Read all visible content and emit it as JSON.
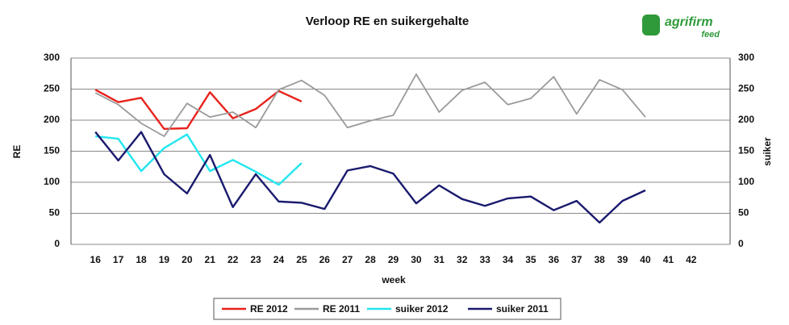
{
  "chart_data": {
    "type": "line",
    "title": "Verloop RE en suikergehalte",
    "logo": {
      "name": "agrifirm",
      "sub": "feed"
    },
    "xlabel": "week",
    "ylabel": "RE",
    "y2label": "suiker",
    "categories": [
      "16",
      "17",
      "18",
      "19",
      "20",
      "21",
      "22",
      "23",
      "24",
      "25",
      "26",
      "27",
      "28",
      "29",
      "30",
      "31",
      "32",
      "33",
      "34",
      "35",
      "36",
      "37",
      "38",
      "39",
      "40",
      "41",
      "42"
    ],
    "ylim": [
      0,
      300
    ],
    "yticks": [
      0,
      50,
      100,
      150,
      200,
      250,
      300
    ],
    "y2lim": [
      0,
      300
    ],
    "y2ticks": [
      0,
      50,
      100,
      150,
      200,
      250,
      300
    ],
    "grid": true,
    "legend": "bottom",
    "series": [
      {
        "name": "RE 2012",
        "color": "#e8221c",
        "values": [
          249,
          229,
          236,
          186,
          187,
          245,
          203,
          218,
          247,
          230,
          null,
          null,
          null,
          null,
          null,
          null,
          null,
          null,
          null,
          null,
          null,
          null,
          null,
          null,
          null,
          null,
          null
        ]
      },
      {
        "name": "RE 2011",
        "color": "#9a9a9a",
        "values": [
          244,
          225,
          195,
          174,
          227,
          205,
          213,
          188,
          249,
          264,
          240,
          188,
          199,
          208,
          274,
          213,
          248,
          261,
          225,
          235,
          270,
          210,
          265,
          249,
          205,
          null,
          null
        ]
      },
      {
        "name": "suiker 2012",
        "color": "#22e6ee",
        "axis": "y2",
        "values": [
          174,
          170,
          118,
          155,
          177,
          118,
          136,
          117,
          96,
          131,
          null,
          null,
          null,
          null,
          null,
          null,
          null,
          null,
          null,
          null,
          null,
          null,
          null,
          null,
          null,
          null,
          null
        ]
      },
      {
        "name": "suiker 2011",
        "color": "#1a1a6e",
        "axis": "y2",
        "values": [
          181,
          135,
          181,
          113,
          82,
          144,
          60,
          113,
          69,
          67,
          57,
          119,
          126,
          114,
          66,
          95,
          73,
          62,
          74,
          77,
          55,
          70,
          35,
          70,
          87,
          null,
          null
        ]
      }
    ]
  }
}
